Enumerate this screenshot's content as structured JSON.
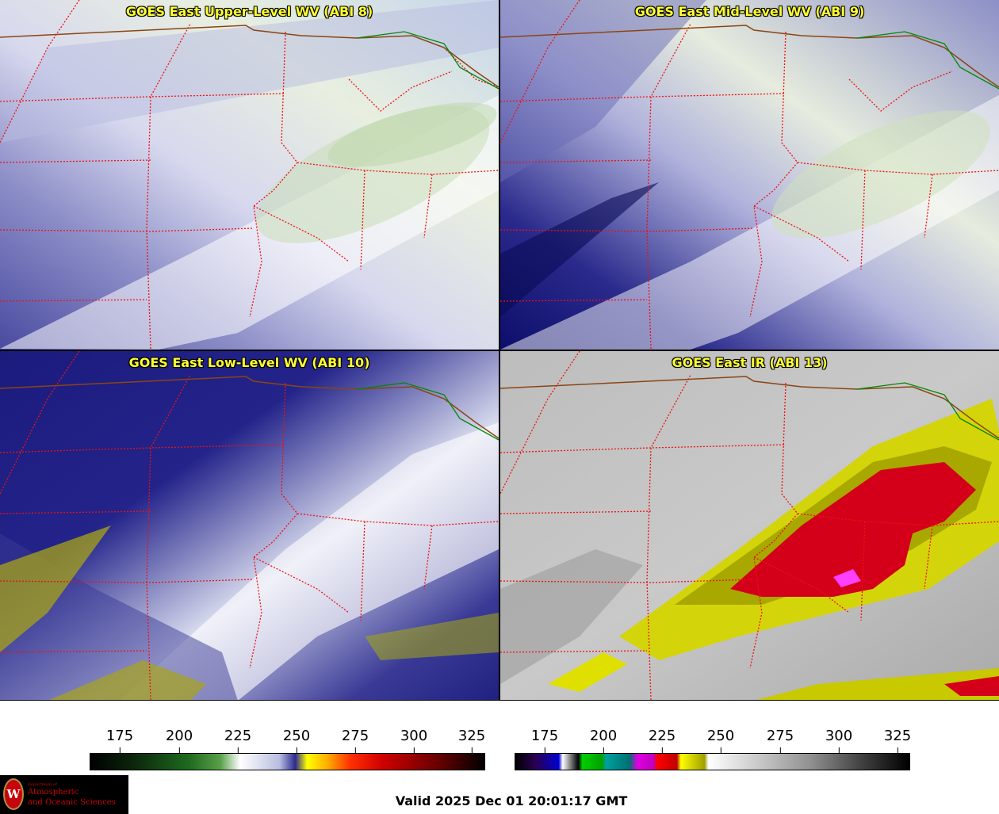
{
  "panels": {
    "upper": {
      "title": "GOES East Upper-Level WV (ABI 8)"
    },
    "mid": {
      "title": "GOES East Mid-Level WV (ABI 9)"
    },
    "low": {
      "title": "GOES East Low-Level WV (ABI 10)"
    },
    "ir": {
      "title": "GOES East IR (ABI 13)"
    }
  },
  "colorbars": {
    "wv": {
      "ticks": [
        "175",
        "200",
        "225",
        "250",
        "275",
        "300",
        "325"
      ]
    },
    "ir": {
      "ticks": [
        "175",
        "200",
        "225",
        "250",
        "275",
        "300",
        "325"
      ]
    }
  },
  "logo": {
    "seal_letter": "W",
    "dept": "Department of",
    "line1": "Atmospheric",
    "line2": "and Oceanic Sciences"
  },
  "valid_time": "Valid 2025 Dec 01 20:01:17 GMT"
}
